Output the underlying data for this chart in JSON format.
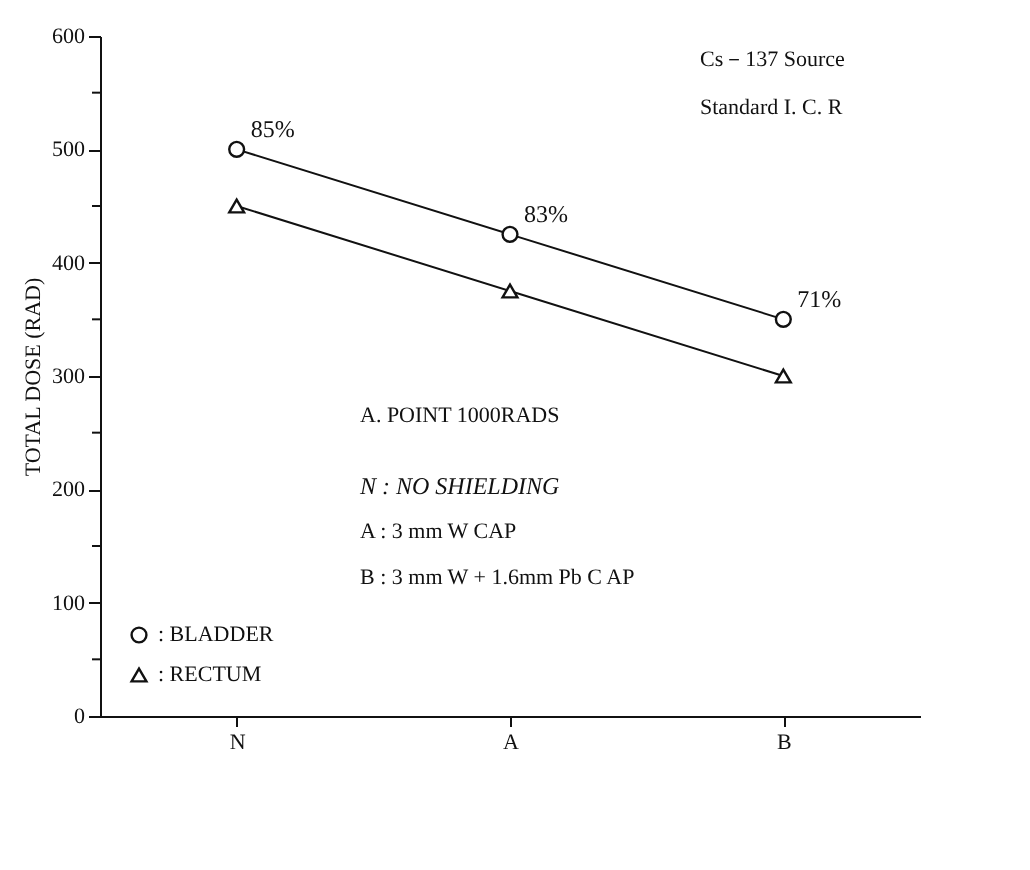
{
  "chart_data": {
    "type": "line",
    "ylabel": "TOTAL DOSE (RAD)",
    "categories": [
      "N",
      "A",
      "B"
    ],
    "ylim": [
      0,
      600
    ],
    "yticks": [
      0,
      {
        "value": 50,
        "label": null
      },
      100,
      {
        "value": 150,
        "label": null
      },
      200,
      {
        "value": 250,
        "label": null
      },
      300,
      {
        "value": 350,
        "label": null
      },
      400,
      {
        "value": 450,
        "label": null
      },
      500,
      {
        "value": 550,
        "label": null
      },
      600
    ],
    "grid": false,
    "legend": "bottom left",
    "series": [
      {
        "name": ":  BLADDER",
        "color": "#111111",
        "marker": "circle",
        "values": [
          500,
          425,
          350
        ]
      },
      {
        "name": ":  RECTUM",
        "color": "#111111",
        "marker": "triangle",
        "values": [
          450,
          375,
          300
        ]
      }
    ],
    "annotations": [
      "Cs－137 Source",
      "Standard I. C. R",
      "A.  POINT    1000RADS",
      "N : NO SHIELDING",
      "A :  3 mm W CAP",
      "B :  3 mm W + 1.6mm Pb C AP",
      {
        "text": "85%",
        "x": "N",
        "y": 500
      },
      {
        "text": "83%",
        "x": "A",
        "y": 425
      },
      {
        "text": "71%",
        "x": "B",
        "y": 350
      }
    ]
  }
}
